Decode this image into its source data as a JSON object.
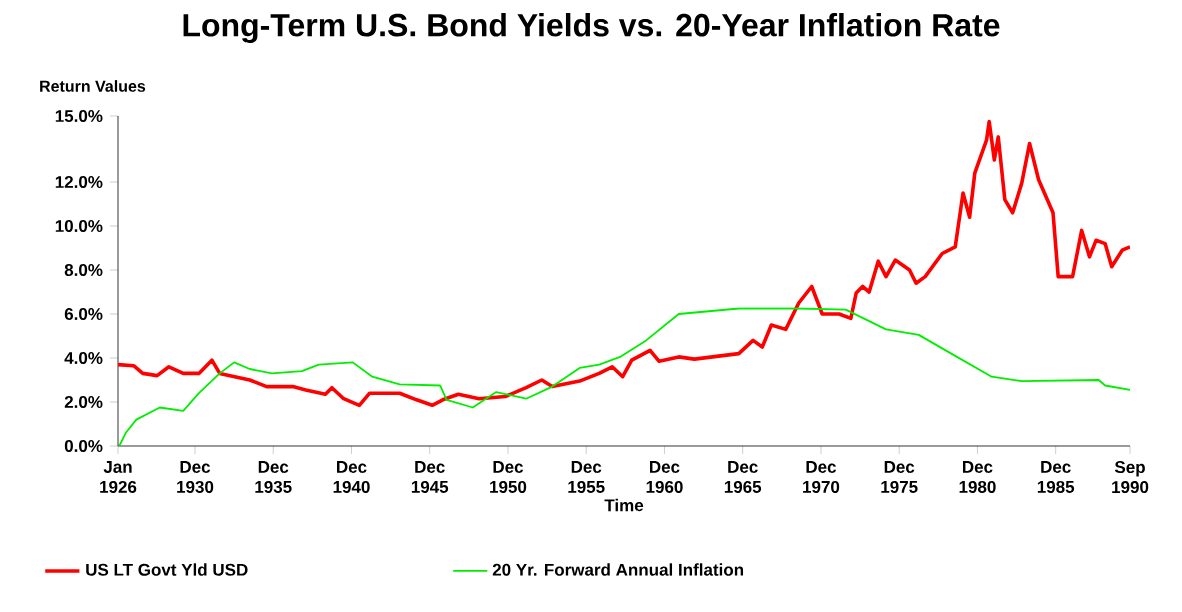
{
  "chart_data": {
    "type": "line",
    "title": "Long-Term U.S. Bond Yields vs. 20-Year Inflation Rate",
    "ylabel": "Return Values",
    "xlabel": "Time",
    "xlim": [
      "1926-01",
      "1990-09"
    ],
    "ylim": [
      0,
      15
    ],
    "xticks": [
      {
        "value": "1926-01",
        "label": "Jan 1926"
      },
      {
        "value": "1930-12",
        "label": "Dec 1930"
      },
      {
        "value": "1935-12",
        "label": "Dec 1935"
      },
      {
        "value": "1940-12",
        "label": "Dec 1940"
      },
      {
        "value": "1945-12",
        "label": "Dec 1945"
      },
      {
        "value": "1950-12",
        "label": "Dec 1950"
      },
      {
        "value": "1955-12",
        "label": "Dec 1955"
      },
      {
        "value": "1960-12",
        "label": "Dec 1960"
      },
      {
        "value": "1965-12",
        "label": "Dec 1965"
      },
      {
        "value": "1970-12",
        "label": "Dec 1970"
      },
      {
        "value": "1975-12",
        "label": "Dec 1975"
      },
      {
        "value": "1980-12",
        "label": "Dec 1980"
      },
      {
        "value": "1985-12",
        "label": "Dec 1985"
      },
      {
        "value": "1990-09",
        "label": "Sep 1990"
      }
    ],
    "yticks": [
      {
        "value": 0,
        "label": "0.0%"
      },
      {
        "value": 2,
        "label": "2.0%"
      },
      {
        "value": 4,
        "label": "4.0%"
      },
      {
        "value": 6,
        "label": "6.0%"
      },
      {
        "value": 8,
        "label": "8.0%"
      },
      {
        "value": 10,
        "label": "10.0%"
      },
      {
        "value": 12,
        "label": "12.0%"
      },
      {
        "value": 15,
        "label": "15.0%"
      }
    ],
    "grid": false,
    "legend": "bottom",
    "marker": "none",
    "line_style": "solid",
    "series": [
      {
        "name": "US LT Govt Yld USD",
        "color": "#ff0000",
        "x": [
          "1926-01",
          "1927-01",
          "1927-08",
          "1928-07",
          "1929-04",
          "1930-03",
          "1931-03",
          "1932-01",
          "1932-07",
          "1933-10",
          "1934-06",
          "1935-07",
          "1937-03",
          "1938-01",
          "1939-04",
          "1939-09",
          "1940-06",
          "1941-06",
          "1942-02",
          "1944-01",
          "1945-02",
          "1946-02",
          "1946-10",
          "1947-10",
          "1949-02",
          "1950-10",
          "1952-02",
          "1953-02",
          "1953-10",
          "1955-07",
          "1956-10",
          "1957-08",
          "1958-04",
          "1958-11",
          "1960-01",
          "1960-08",
          "1961-11",
          "1962-11",
          "1965-09",
          "1966-08",
          "1967-03",
          "1967-10",
          "1968-09",
          "1969-07",
          "1970-05",
          "1971-01",
          "1972-02",
          "1972-11",
          "1973-03",
          "1973-08",
          "1974-01",
          "1974-08",
          "1975-02",
          "1975-09",
          "1976-08",
          "1977-01",
          "1977-08",
          "1978-09",
          "1979-07",
          "1980-01",
          "1980-06",
          "1980-10",
          "1981-07",
          "1981-09",
          "1982-01",
          "1982-04",
          "1982-09",
          "1983-03",
          "1983-10",
          "1984-04",
          "1984-11",
          "1985-10",
          "1986-02",
          "1987-01",
          "1987-08",
          "1988-02",
          "1988-07",
          "1989-02",
          "1989-07",
          "1990-03",
          "1990-09"
        ],
        "values": [
          3.7,
          3.65,
          3.3,
          3.2,
          3.6,
          3.3,
          3.3,
          3.9,
          3.3,
          3.1,
          3.0,
          2.7,
          2.7,
          2.55,
          2.35,
          2.65,
          2.15,
          1.85,
          2.4,
          2.4,
          2.1,
          1.85,
          2.1,
          2.35,
          2.15,
          2.25,
          2.65,
          3.0,
          2.7,
          2.95,
          3.3,
          3.6,
          3.15,
          3.9,
          4.35,
          3.85,
          4.05,
          3.95,
          4.2,
          4.8,
          4.5,
          5.5,
          5.3,
          6.5,
          7.25,
          6.0,
          6.0,
          5.8,
          6.95,
          7.25,
          7.0,
          8.4,
          7.7,
          8.45,
          8.0,
          7.4,
          7.7,
          8.75,
          9.05,
          11.5,
          10.4,
          12.4,
          13.9,
          14.75,
          13.0,
          14.05,
          11.2,
          10.6,
          11.95,
          13.75,
          12.1,
          10.6,
          7.7,
          7.7,
          9.8,
          8.6,
          9.35,
          9.2,
          8.15,
          8.9,
          9.05
        ]
      },
      {
        "name": "20 Yr. Forward Annual Inflation",
        "color": "#00ee00",
        "x": [
          "1926-02",
          "1926-07",
          "1927-03",
          "1928-09",
          "1930-03",
          "1931-03",
          "1932-07",
          "1933-06",
          "1934-06",
          "1935-11",
          "1937-10",
          "1938-11",
          "1941-01",
          "1942-04",
          "1944-01",
          "1946-08",
          "1947-01",
          "1948-09",
          "1950-03",
          "1952-02",
          "1953-10",
          "1955-07",
          "1956-10",
          "1958-02",
          "1959-10",
          "1961-11",
          "1965-09",
          "1969-07",
          "1972-07",
          "1975-02",
          "1977-03",
          "1979-04",
          "1981-11",
          "1983-10",
          "1988-09",
          "1989-02",
          "1990-09"
        ],
        "values": [
          0.0,
          0.6,
          1.2,
          1.75,
          1.6,
          2.4,
          3.3,
          3.8,
          3.5,
          3.3,
          3.4,
          3.7,
          3.8,
          3.15,
          2.8,
          2.75,
          2.1,
          1.75,
          2.45,
          2.15,
          2.7,
          3.55,
          3.7,
          4.05,
          4.8,
          6.0,
          6.25,
          6.25,
          6.2,
          5.3,
          5.05,
          4.2,
          3.15,
          2.95,
          3.0,
          2.75,
          2.55
        ]
      }
    ]
  }
}
